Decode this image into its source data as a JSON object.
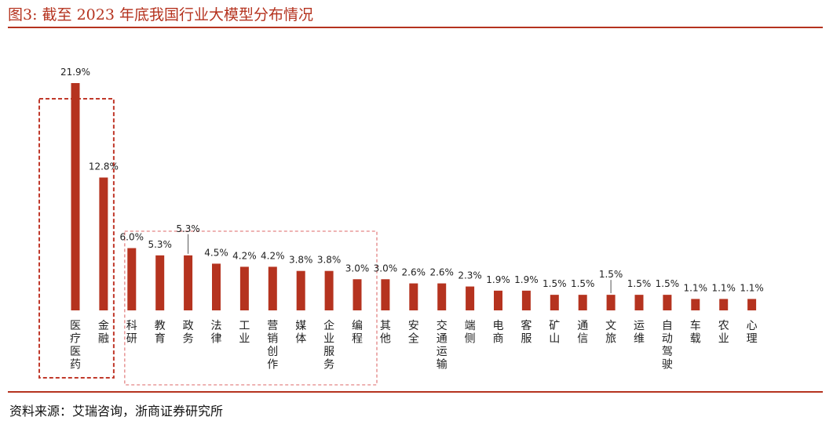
{
  "title": "图3:  截至 2023 年底我国行业大模型分布情况",
  "source": "资料来源：艾瑞咨询，浙商证券研究所",
  "colors": {
    "bar": "#b5331f",
    "accent": "#b5331f",
    "box_dark": "#c0392b",
    "box_light": "#e89a9a"
  },
  "chart_data": {
    "type": "bar",
    "unit": "%",
    "categories": [
      "医疗医药",
      "金融",
      "科研",
      "教育",
      "政务",
      "法律",
      "工业",
      "营销创作",
      "媒体",
      "企业服务",
      "编程",
      "其他",
      "安全",
      "交通运输",
      "端侧",
      "电商",
      "客服",
      "矿山",
      "通信",
      "文旅",
      "运维",
      "自动驾驶",
      "车载",
      "农业",
      "心理"
    ],
    "values": [
      21.9,
      12.8,
      6.0,
      5.3,
      5.3,
      4.5,
      4.2,
      4.2,
      3.8,
      3.8,
      3.0,
      3.0,
      2.6,
      2.6,
      2.3,
      1.9,
      1.9,
      1.5,
      1.5,
      1.5,
      1.5,
      1.5,
      1.1,
      1.1,
      1.1
    ],
    "value_labels": [
      "21.9%",
      "12.8%",
      "6.0%",
      "5.3%",
      "5.3%",
      "4.5%",
      "4.2%",
      "4.2%",
      "3.8%",
      "3.8%",
      "3.0%",
      "3.0%",
      "2.6%",
      "2.6%",
      "2.3%",
      "1.9%",
      "1.9%",
      "1.5%",
      "1.5%",
      "1.5%",
      "1.5%",
      "1.5%",
      "1.1%",
      "1.1%",
      "1.1%"
    ],
    "ylim": [
      0,
      22
    ],
    "grid": false,
    "legend": "none",
    "highlight_groups": [
      {
        "style": "dashed-dark",
        "from": 0,
        "to": 1
      },
      {
        "style": "dashed-light",
        "from": 2,
        "to": 10
      }
    ]
  }
}
